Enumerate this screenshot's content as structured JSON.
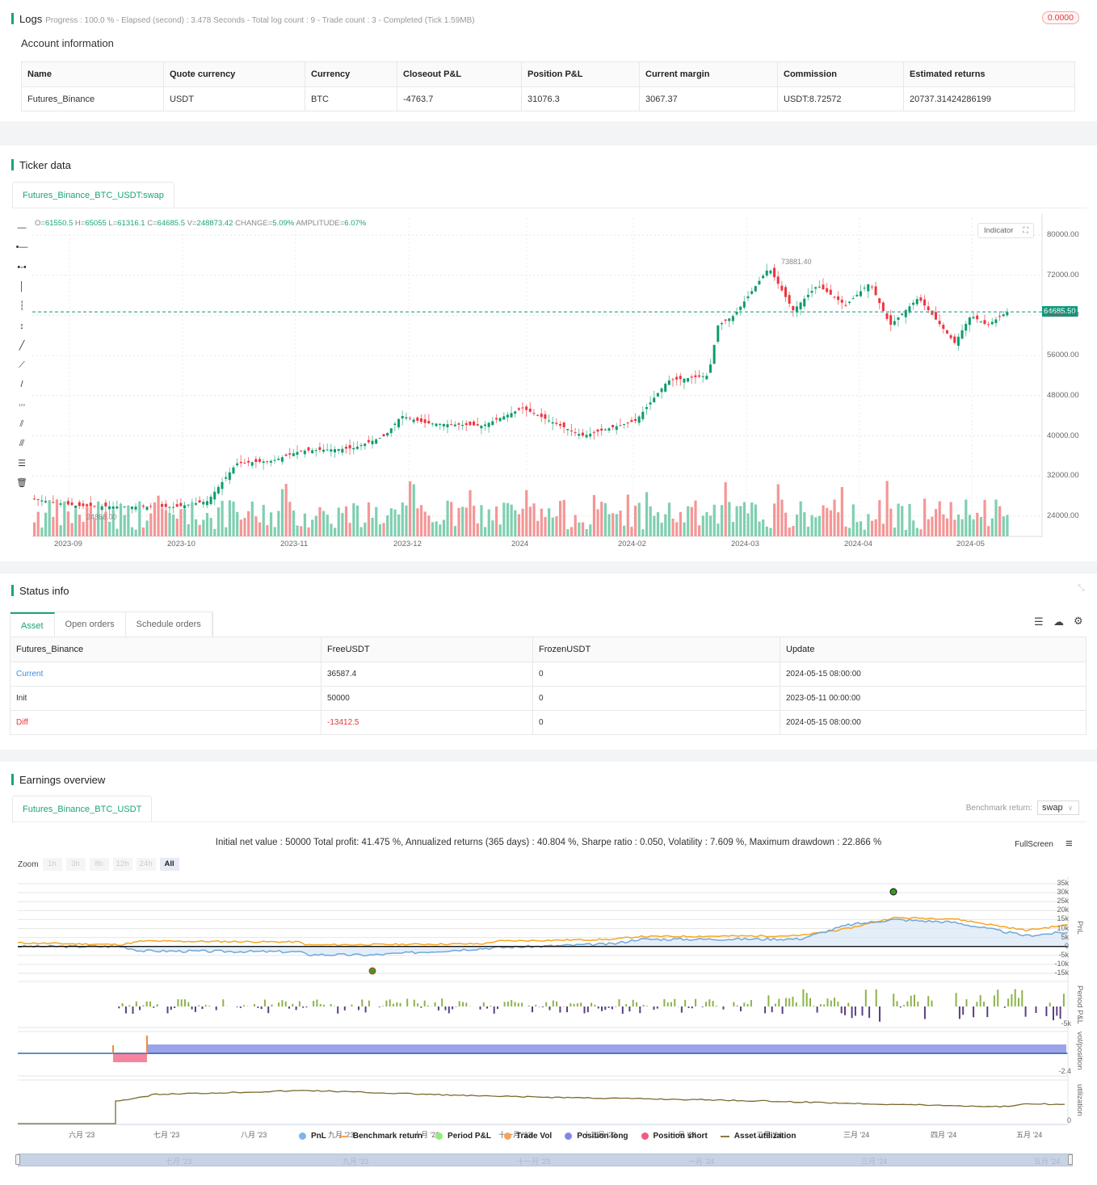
{
  "logs": {
    "title": "Logs",
    "meta": "Progress : 100.0 % - Elapsed (second) : 3.478  Seconds - Total log count : 9 - Trade count : 3 - Completed (Tick 1.59MB)",
    "badge": "0.0000",
    "account_title": "Account information",
    "columns": [
      "Name",
      "Quote currency",
      "Currency",
      "Closeout P&L",
      "Position P&L",
      "Current margin",
      "Commission",
      "Estimated returns"
    ],
    "row": [
      "Futures_Binance",
      "USDT",
      "BTC",
      "-4763.7",
      "31076.3",
      "3067.37",
      "USDT:8.72572",
      "20737.31424286199"
    ]
  },
  "ticker": {
    "title": "Ticker data",
    "tab": "Futures_Binance_BTC_USDT:swap",
    "ohlc": {
      "o_label": "O=",
      "o": "61550.5",
      "h_label": " H=",
      "h": "65055",
      "l_label": " L=",
      "l": "61316.1",
      "c_label": " C=",
      "c": "64685.5",
      "v_label": " V=",
      "v": "248873.42",
      "chg_label": " CHANGE=",
      "chg": "5.09%",
      "amp_label": " AMPLITUDE=",
      "amp": "6.07%"
    },
    "indicator_label": "Indicator",
    "last_price": "64685.50",
    "high_marker": "73881.40",
    "low_marker": "24888.00",
    "y_ticks": [
      "80000.00",
      "72000.00",
      "64000.00",
      "56000.00",
      "48000.00",
      "40000.00",
      "32000.00",
      "24000.00"
    ],
    "x_ticks": [
      "2023-09",
      "2023-10",
      "2023-11",
      "2023-12",
      "2024",
      "2024-02",
      "2024-03",
      "2024-04",
      "2024-05"
    ],
    "colors": {
      "up": "#0e9b6f",
      "down": "#f0343f",
      "vol_up": "#7fcfb0",
      "vol_down": "#f49696",
      "last_line": "#3aa89b"
    },
    "tools": [
      "horizontal-line",
      "horizontal-ray",
      "horizontal-segment",
      "vertical-line",
      "vertical-ray",
      "vertical-segment",
      "trend-line",
      "ray-line",
      "segment-line",
      "price-line",
      "parallel-channel",
      "fib-channel",
      "fib-retracement",
      "delete"
    ]
  },
  "status": {
    "title": "Status info",
    "tabs": [
      "Asset",
      "Open orders",
      "Schedule orders"
    ],
    "columns": [
      "Futures_Binance",
      "FreeUSDT",
      "FrozenUSDT",
      "Update"
    ],
    "rows": [
      {
        "name": "Current",
        "free": "36587.4",
        "frozen": "0",
        "update": "2024-05-15 08:00:00"
      },
      {
        "name": "Init",
        "free": "50000",
        "frozen": "0",
        "update": "2023-05-11 00:00:00"
      },
      {
        "name": "Diff",
        "free": "-13412.5",
        "frozen": "0",
        "update": "2024-05-15 08:00:00"
      }
    ]
  },
  "earnings": {
    "title": "Earnings overview",
    "tab": "Futures_Binance_BTC_USDT",
    "benchmark_label": "Benchmark return:",
    "benchmark_value": "swap",
    "stats": "Initial net value : 50000 Total profit: 41.475 %, Annualized returns (365 days) : 40.804 %, Sharpe ratio : 0.050, Volatility : 7.609 %, Maximum drawdown : 22.866 %",
    "fullscreen": "FullScreen",
    "zoom_label": "Zoom",
    "zoom_buttons": [
      "1h",
      "3h",
      "8h",
      "12h",
      "24h",
      "All"
    ],
    "pnl_ticks": [
      "35k",
      "30k",
      "25k",
      "20k",
      "15k",
      "10k",
      "5k",
      "0",
      "-5k",
      "-10k",
      "-15k"
    ],
    "period_tick": "-5k",
    "vol_tick": "-2.4",
    "util_tick": "0",
    "axis_titles": {
      "pnl": "PnL",
      "period": "Period P&L",
      "vol": "vol/position",
      "util": "utilization"
    },
    "x_ticks": [
      "六月 '23",
      "七月 '23",
      "八月 '23",
      "九月 '23",
      "十月 '23",
      "十一月 '23",
      "十二月 '23",
      "一月 '24",
      "二月 '24",
      "三月 '24",
      "四月 '24",
      "五月 '24"
    ],
    "navigator_ticks": [
      "七月 '23",
      "九月 '23",
      "十一月 '23",
      "一月 '24",
      "三月 '24",
      "五月 '24"
    ],
    "legend": [
      {
        "label": "PnL",
        "color": "#7cb5ec",
        "shape": "dot"
      },
      {
        "label": "Benchmark return",
        "color": "#f7a35c",
        "shape": "line"
      },
      {
        "label": "Period P&L",
        "color": "#90ed7d",
        "shape": "dot"
      },
      {
        "label": "Trade Vol",
        "color": "#f7a35c",
        "shape": "dot"
      },
      {
        "label": "Position long",
        "color": "#8085e9",
        "shape": "dot"
      },
      {
        "label": "Position short",
        "color": "#f15c80",
        "shape": "dot"
      },
      {
        "label": "Asset utilization",
        "color": "#8d7a3a",
        "shape": "line"
      }
    ]
  }
}
